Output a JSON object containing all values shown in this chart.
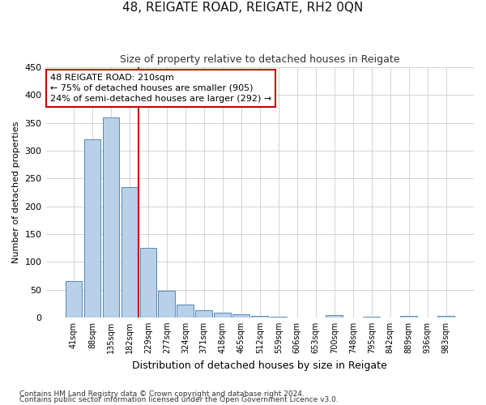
{
  "title": "48, REIGATE ROAD, REIGATE, RH2 0QN",
  "subtitle": "Size of property relative to detached houses in Reigate",
  "xlabel": "Distribution of detached houses by size in Reigate",
  "ylabel": "Number of detached properties",
  "footnote1": "Contains HM Land Registry data © Crown copyright and database right 2024.",
  "footnote2": "Contains public sector information licensed under the Open Government Licence v3.0.",
  "bar_labels": [
    "41sqm",
    "88sqm",
    "135sqm",
    "182sqm",
    "229sqm",
    "277sqm",
    "324sqm",
    "371sqm",
    "418sqm",
    "465sqm",
    "512sqm",
    "559sqm",
    "606sqm",
    "653sqm",
    "700sqm",
    "748sqm",
    "795sqm",
    "842sqm",
    "889sqm",
    "936sqm",
    "983sqm"
  ],
  "bar_values": [
    65,
    320,
    360,
    235,
    125,
    48,
    23,
    13,
    8,
    5,
    3,
    1,
    0,
    0,
    4,
    0,
    1,
    0,
    3,
    0,
    3
  ],
  "bar_color": "#b8d0e8",
  "bar_edge_color": "#5588bb",
  "grid_color": "#cccccc",
  "annotation_box_color": "#cc0000",
  "vline_color": "#cc0000",
  "vline_position": 3.5,
  "annotation_text_line1": "48 REIGATE ROAD: 210sqm",
  "annotation_text_line2": "← 75% of detached houses are smaller (905)",
  "annotation_text_line3": "24% of semi-detached houses are larger (292) →",
  "ylim": [
    0,
    450
  ],
  "yticks": [
    0,
    50,
    100,
    150,
    200,
    250,
    300,
    350,
    400,
    450
  ],
  "background_color": "#ffffff",
  "title_fontsize": 11,
  "subtitle_fontsize": 9,
  "ylabel_fontsize": 8,
  "xlabel_fontsize": 9,
  "footnote_fontsize": 6.5,
  "annotation_fontsize": 8
}
